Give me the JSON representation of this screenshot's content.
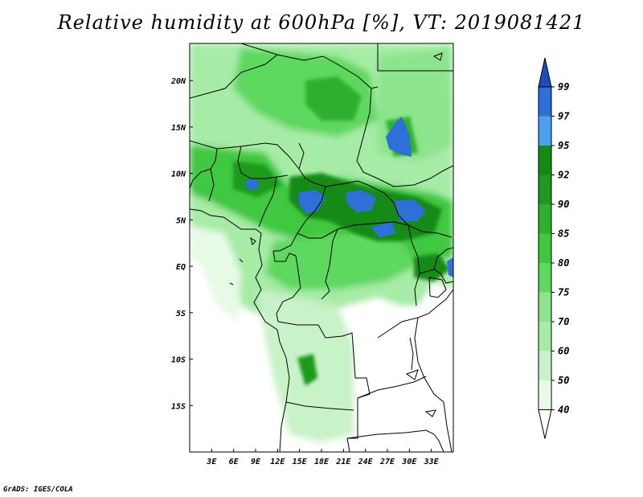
{
  "title": "Relative humidity at 600hPa [%], VT: 2019081421",
  "credit": "GrADS: IGES/COLA",
  "map": {
    "lon_range": [
      0,
      36
    ],
    "lat_range": [
      -20,
      24
    ],
    "lon_ticks": [
      {
        "value": 3,
        "label": "3E"
      },
      {
        "value": 6,
        "label": "6E"
      },
      {
        "value": 9,
        "label": "9E"
      },
      {
        "value": 12,
        "label": "12E"
      },
      {
        "value": 15,
        "label": "15E"
      },
      {
        "value": 18,
        "label": "18E"
      },
      {
        "value": 21,
        "label": "21E"
      },
      {
        "value": 24,
        "label": "24E"
      },
      {
        "value": 27,
        "label": "27E"
      },
      {
        "value": 30,
        "label": "30E"
      },
      {
        "value": 33,
        "label": "33E"
      }
    ],
    "lat_ticks": [
      {
        "value": 20,
        "label": "20N"
      },
      {
        "value": 15,
        "label": "15N"
      },
      {
        "value": 10,
        "label": "10N"
      },
      {
        "value": 5,
        "label": "5N"
      },
      {
        "value": 0,
        "label": "EQ"
      },
      {
        "value": -5,
        "label": "5S"
      },
      {
        "value": -10,
        "label": "10S"
      },
      {
        "value": -15,
        "label": "15S"
      }
    ]
  },
  "colorbar": {
    "levels": [
      "40",
      "50",
      "60",
      "70",
      "75",
      "80",
      "85",
      "90",
      "92",
      "95",
      "97",
      "99"
    ],
    "colors": [
      "#ffffff",
      "#e6fae6",
      "#c8f2c8",
      "#a6eba6",
      "#8ce48c",
      "#5fd85f",
      "#3fc83f",
      "#2eb02e",
      "#1f9a1f",
      "#138a13",
      "#4d9ff0",
      "#2e6fd8",
      "#1d4fb8"
    ]
  }
}
